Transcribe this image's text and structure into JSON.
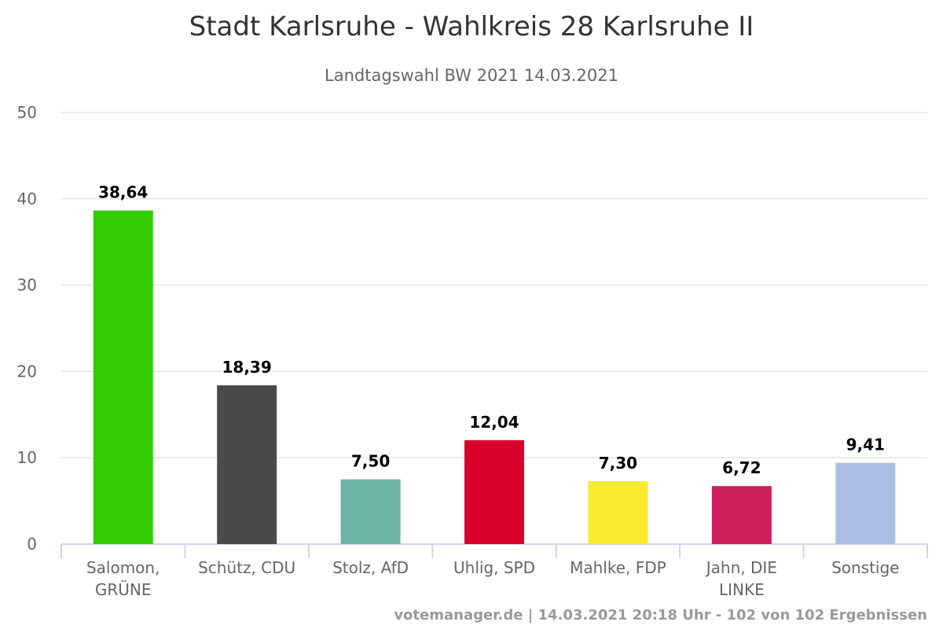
{
  "chart_data": {
    "type": "bar",
    "title": "Stadt Karlsruhe - Wahlkreis 28 Karlsruhe II",
    "subtitle": "Landtagswahl BW 2021 14.03.2021",
    "categories": [
      "Salomon, GRÜNE",
      "Schütz, CDU",
      "Stolz, AfD",
      "Uhlig, SPD",
      "Mahlke, FDP",
      "Jahn, DIE LINKE",
      "Sonstige"
    ],
    "category_lines": [
      [
        "Salomon,",
        "GRÜNE"
      ],
      [
        "Schütz, CDU"
      ],
      [
        "Stolz, AfD"
      ],
      [
        "Uhlig, SPD"
      ],
      [
        "Mahlke, FDP"
      ],
      [
        "Jahn, DIE",
        "LINKE"
      ],
      [
        "Sonstige"
      ]
    ],
    "values": [
      38.64,
      18.39,
      7.5,
      12.04,
      7.3,
      6.72,
      9.41
    ],
    "data_labels": [
      "38,64",
      "18,39",
      "7,50",
      "12,04",
      "7,30",
      "6,72",
      "9,41"
    ],
    "colors": [
      "#33cc00",
      "#4a4a4a",
      "#6db3a4",
      "#d9002a",
      "#f8ea2e",
      "#cd1f5b",
      "#abbfe5"
    ],
    "ylim": [
      0,
      50
    ],
    "yticks": [
      0,
      10,
      20,
      30,
      40,
      50
    ],
    "grid": true,
    "xlabel": "",
    "ylabel": ""
  },
  "footer": "votemanager.de | 14.03.2021 20:18 Uhr - 102 von 102 Ergebnissen"
}
